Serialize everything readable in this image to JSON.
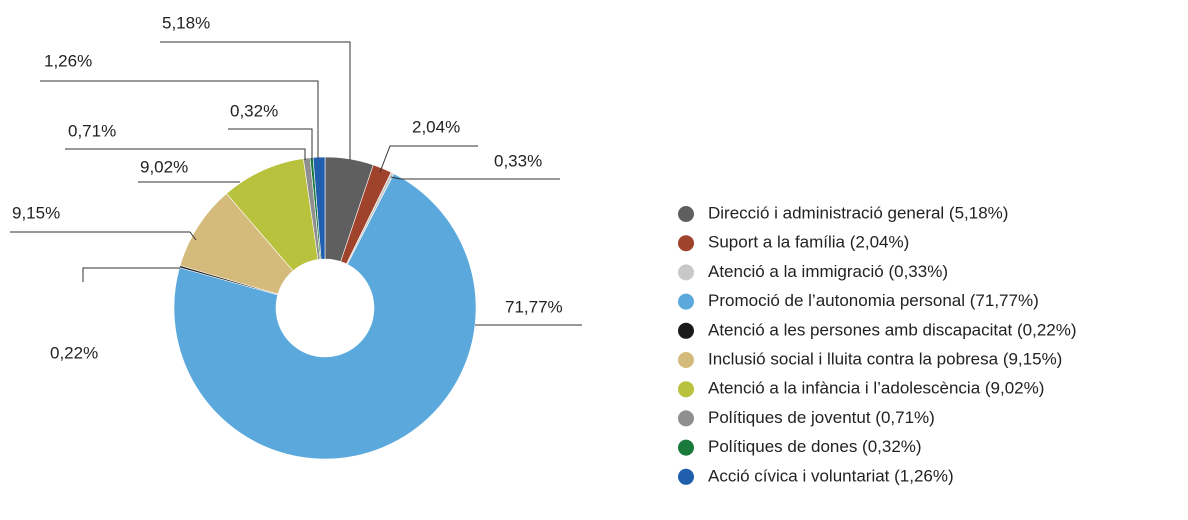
{
  "chart_data": {
    "type": "donut",
    "categories": [
      "Direcció i administració general (5,18%)",
      "Suport a la família (2,04%)",
      "Atenció a la immigració (0,33%)",
      "Promoció de l’autonomia personal (71,77%)",
      "Atenció a les persones amb discapacitat (0,22%)",
      "Inclusió social i lluita contra la pobresa (9,15%)",
      "Atenció a la infància i l’adolescència (9,02%)",
      "Polítiques de joventut (0,71%)",
      "Polítiques de dones (0,32%)",
      "Acció cívica i voluntariat (1,26%)"
    ],
    "values": [
      5.18,
      2.04,
      0.33,
      71.77,
      0.22,
      9.15,
      9.02,
      0.71,
      0.32,
      1.26
    ],
    "value_labels": [
      "5,18%",
      "2,04%",
      "0,33%",
      "71,77%",
      "0,22%",
      "9,15%",
      "9,02%",
      "0,71%",
      "0,32%",
      "1,26%"
    ],
    "colors": [
      "#5f5f5f",
      "#a0432c",
      "#c8c8c8",
      "#5aa8dc",
      "#1a1a1a",
      "#d4bb7c",
      "#b9c23c",
      "#8f8f8f",
      "#1a7a3c",
      "#1f5fae"
    ],
    "legend": "right"
  }
}
